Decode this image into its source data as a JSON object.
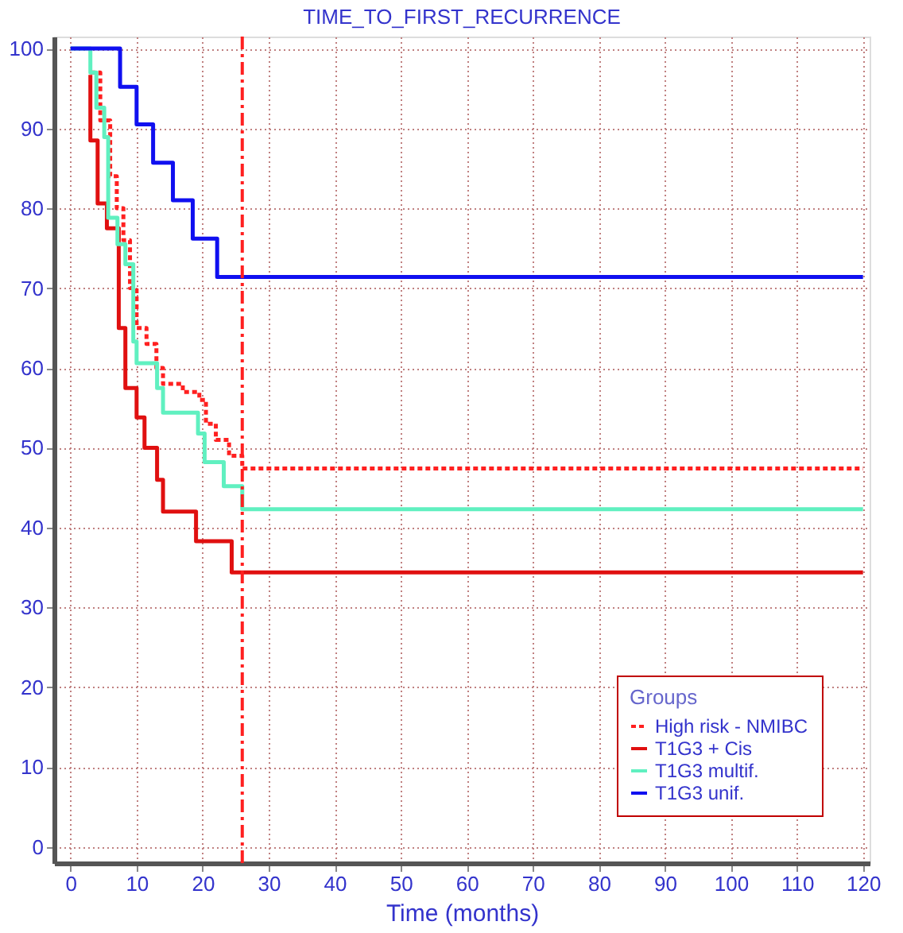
{
  "chart_data": {
    "type": "step",
    "title": "TIME_TO_FIRST_RECURRENCE",
    "xlabel": "Time (months)",
    "legend_title": "Groups",
    "series": [
      {
        "name": "High risk - NMIBC",
        "color": "#ff2020",
        "line_style": "dotted",
        "x": [
          3,
          4.5,
          6,
          7,
          8,
          9,
          10,
          11.5,
          13,
          14,
          17,
          19.5,
          20.5,
          22,
          24,
          26,
          120
        ],
        "values": [
          97,
          91,
          84,
          80,
          76,
          70,
          65,
          63,
          60,
          58,
          57,
          56,
          53,
          51,
          49,
          47.4,
          47.4
        ]
      },
      {
        "name": "T1G3 + Cis",
        "color": "#e01010",
        "line_style": "solid",
        "x": [
          3,
          3,
          4.1,
          5.5,
          7.3,
          8.3,
          10,
          11.2,
          13.1,
          14,
          19,
          24.4,
          120
        ],
        "values": [
          96.7,
          88.5,
          80.6,
          77.5,
          65,
          57.5,
          53.8,
          50,
          46,
          42,
          38.3,
          34.4,
          34.4
        ]
      },
      {
        "name": "T1G3 multif.",
        "color": "#60f0c0",
        "line_style": "solid",
        "x": [
          0,
          3,
          3.9,
          5.1,
          5.7,
          7.1,
          8.3,
          9.5,
          10,
          13.1,
          14,
          19.3,
          20.3,
          23.2,
          26,
          120
        ],
        "values": [
          100,
          97,
          92.6,
          88.9,
          78.8,
          75.5,
          73,
          63.3,
          60.6,
          57.5,
          54.4,
          51.8,
          48.2,
          45.2,
          42.3,
          42.3
        ]
      },
      {
        "name": "T1G3 unif.",
        "color": "#1010f0",
        "line_style": "solid",
        "x": [
          0,
          7.5,
          10,
          12.5,
          15.5,
          18.5,
          22.2,
          120
        ],
        "values": [
          100,
          95.2,
          90.5,
          85.7,
          81,
          76.2,
          71.4,
          71.4
        ]
      }
    ],
    "ref_lines": [
      {
        "axis": "x",
        "value": 26,
        "color": "#ff2020",
        "line_style": "dashdot"
      }
    ],
    "xlim": [
      -2.5,
      121
    ],
    "xticks": [
      0,
      10,
      20,
      30,
      40,
      50,
      60,
      70,
      80,
      90,
      100,
      110,
      120
    ],
    "ylim": [
      -2,
      101.5
    ],
    "yticks": [
      0,
      10,
      20,
      30,
      40,
      50,
      60,
      70,
      80,
      90,
      100
    ],
    "grid": true,
    "legend": "bottom right"
  }
}
